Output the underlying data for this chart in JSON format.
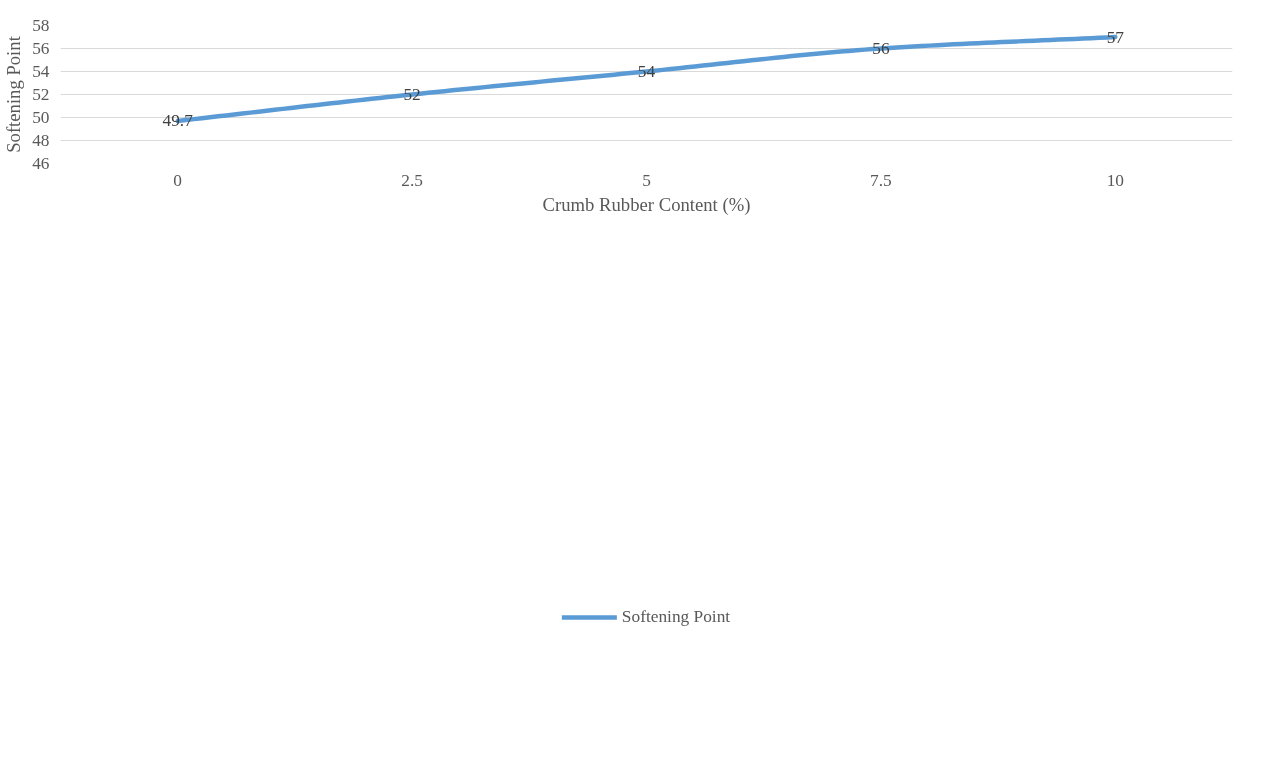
{
  "chart_data": {
    "type": "line",
    "xlabel": "Crumb Rubber Content (%)",
    "ylabel": "Softening Point",
    "categories": [
      "0",
      "2.5",
      "5",
      "7.5",
      "10"
    ],
    "series": [
      {
        "name": "Softening Point",
        "color": "#5b9bd5",
        "values": [
          49.7,
          52,
          54,
          56,
          57
        ]
      }
    ],
    "ylim": [
      46,
      58
    ],
    "yticks": [
      46,
      48,
      50,
      52,
      54,
      56,
      58
    ],
    "grid": "y",
    "legend": "bottom",
    "data_labels": true,
    "marker": "none",
    "line_style": "solid"
  }
}
